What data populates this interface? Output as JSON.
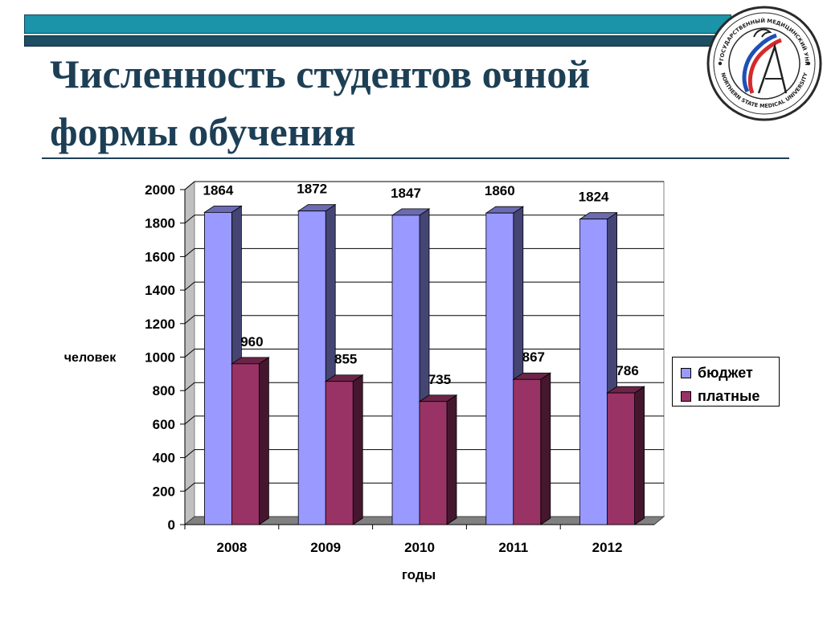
{
  "header": {
    "title_line1": "Численность студентов очной",
    "title_line2": "формы обучения",
    "logo": {
      "icon": "university-seal-icon",
      "text_top": "СЕВЕРНЫЙ ГОСУДАРСТВЕННЫЙ МЕДИЦИНСКИЙ УНИВЕРСИТЕТ",
      "text_bottom": "NORTHERN STATE MEDICAL UNIVERSITY"
    }
  },
  "colors": {
    "band_top": "#1b93a8",
    "band_bottom": "#1d4e63",
    "title": "#1d3f55",
    "budget": "#9999ff",
    "paid": "#993366"
  },
  "chart_data": {
    "type": "bar",
    "title": "",
    "xlabel": "годы",
    "ylabel": "человек",
    "categories": [
      "2008",
      "2009",
      "2010",
      "2011",
      "2012"
    ],
    "ylim": [
      0,
      2000
    ],
    "yticks": [
      "0",
      "200",
      "400",
      "600",
      "800",
      "1000",
      "1200",
      "1400",
      "1600",
      "1800",
      "2000"
    ],
    "grid": true,
    "legend_position": "right",
    "series": [
      {
        "name": "бюджет",
        "values": [
          1864,
          1872,
          1847,
          1860,
          1824
        ],
        "color": "#9999ff"
      },
      {
        "name": "платные",
        "values": [
          960,
          855,
          735,
          867,
          786
        ],
        "color": "#993366"
      }
    ]
  }
}
